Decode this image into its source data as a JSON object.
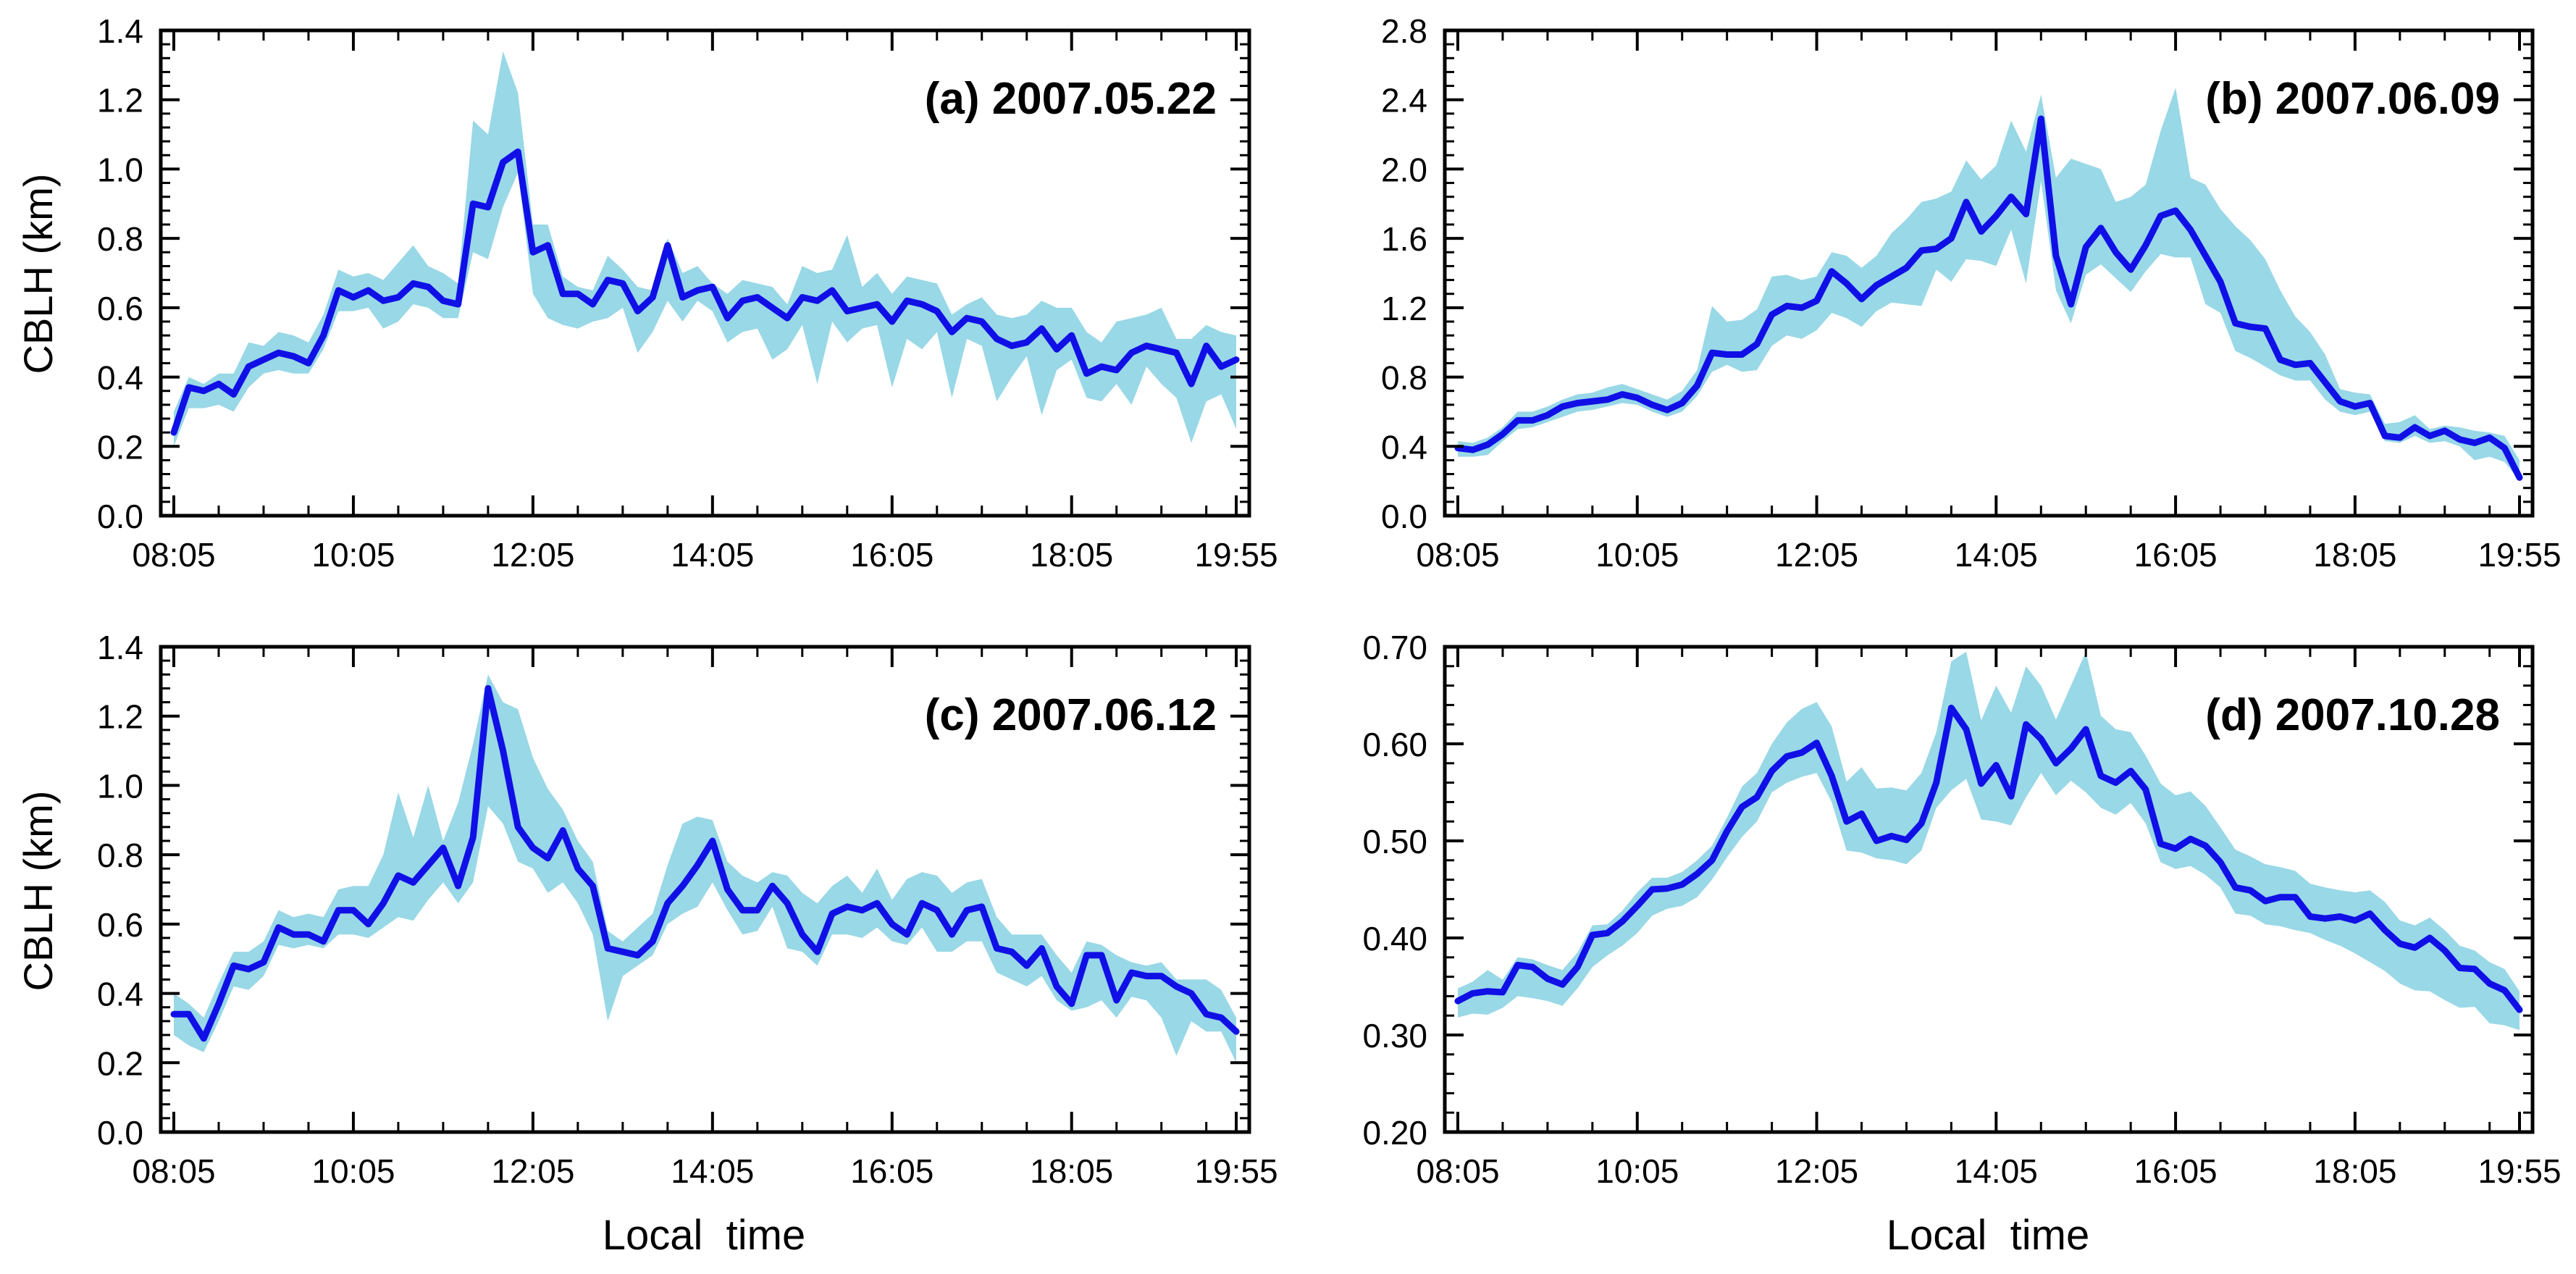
{
  "colors": {
    "line": "#1010e6",
    "band": "#99d8e6",
    "axis": "#000000"
  },
  "shared": {
    "ylabel": "CBLH   (km)",
    "xlabel": "Local  time",
    "xticks": [
      "08:05",
      "10:05",
      "12:05",
      "14:05",
      "16:05",
      "18:05",
      "19:55"
    ]
  },
  "chart_data": [
    {
      "type": "line",
      "title": "(a) 2007.05.22",
      "xlabel": "",
      "ylabel": "CBLH   (km)",
      "x_start": "08:05",
      "x_end": "19:55",
      "interval_minutes": 10,
      "ylim": [
        0,
        1.4
      ],
      "yticks": [
        "0.0",
        "0.2",
        "0.4",
        "0.6",
        "0.8",
        "1.0",
        "1.2",
        "1.4"
      ],
      "xticks": [
        "08:05",
        "10:05",
        "12:05",
        "14:05",
        "16:05",
        "18:05",
        "19:55"
      ],
      "grid": false,
      "series": [
        {
          "kind": "mean",
          "values": [
            0.24,
            0.37,
            0.36,
            0.38,
            0.35,
            0.43,
            0.45,
            0.47,
            0.46,
            0.44,
            0.52,
            0.65,
            0.63,
            0.65,
            0.62,
            0.63,
            0.67,
            0.66,
            0.62,
            0.61,
            0.9,
            0.89,
            1.02,
            1.05,
            0.76,
            0.78,
            0.64,
            0.64,
            0.61,
            0.68,
            0.67,
            0.59,
            0.63,
            0.78,
            0.63,
            0.65,
            0.66,
            0.57,
            0.62,
            0.63,
            0.6,
            0.57,
            0.63,
            0.62,
            0.65,
            0.59,
            0.6,
            0.61,
            0.56,
            0.62,
            0.61,
            0.59,
            0.53,
            0.57,
            0.56,
            0.51,
            0.49,
            0.5,
            0.54,
            0.48,
            0.52,
            0.41,
            0.43,
            0.42,
            0.47,
            0.49,
            0.48,
            0.47,
            0.38,
            0.49,
            0.43,
            0.45
          ]
        },
        {
          "kind": "upper",
          "values": [
            0.3,
            0.4,
            0.38,
            0.41,
            0.41,
            0.5,
            0.49,
            0.53,
            0.52,
            0.5,
            0.58,
            0.71,
            0.69,
            0.7,
            0.68,
            0.73,
            0.78,
            0.72,
            0.7,
            0.67,
            1.14,
            1.1,
            1.34,
            1.22,
            0.84,
            0.84,
            0.69,
            0.66,
            0.65,
            0.75,
            0.71,
            0.66,
            0.65,
            0.8,
            0.7,
            0.72,
            0.67,
            0.64,
            0.68,
            0.67,
            0.66,
            0.61,
            0.72,
            0.7,
            0.71,
            0.81,
            0.66,
            0.7,
            0.64,
            0.69,
            0.68,
            0.67,
            0.58,
            0.61,
            0.63,
            0.58,
            0.57,
            0.58,
            0.62,
            0.6,
            0.6,
            0.53,
            0.5,
            0.56,
            0.57,
            0.58,
            0.6,
            0.51,
            0.51,
            0.55,
            0.53,
            0.52
          ]
        },
        {
          "kind": "lower",
          "values": [
            0.2,
            0.31,
            0.31,
            0.32,
            0.3,
            0.37,
            0.41,
            0.42,
            0.41,
            0.41,
            0.48,
            0.59,
            0.59,
            0.6,
            0.54,
            0.56,
            0.61,
            0.6,
            0.57,
            0.57,
            0.76,
            0.74,
            0.89,
            0.99,
            0.64,
            0.57,
            0.55,
            0.54,
            0.56,
            0.57,
            0.6,
            0.47,
            0.53,
            0.62,
            0.56,
            0.62,
            0.59,
            0.5,
            0.53,
            0.54,
            0.45,
            0.48,
            0.55,
            0.38,
            0.56,
            0.5,
            0.54,
            0.55,
            0.37,
            0.51,
            0.48,
            0.53,
            0.34,
            0.51,
            0.49,
            0.33,
            0.4,
            0.46,
            0.29,
            0.42,
            0.45,
            0.34,
            0.33,
            0.38,
            0.32,
            0.43,
            0.38,
            0.34,
            0.21,
            0.33,
            0.35,
            0.25
          ]
        }
      ]
    },
    {
      "type": "line",
      "title": "(b) 2007.06.09",
      "xlabel": "",
      "ylabel": "",
      "x_start": "08:05",
      "x_end": "19:55",
      "interval_minutes": 10,
      "ylim": [
        0,
        2.8
      ],
      "yticks": [
        "0.0",
        "0.4",
        "0.8",
        "1.2",
        "1.6",
        "2.0",
        "2.4",
        "2.8"
      ],
      "xticks": [
        "08:05",
        "10:05",
        "12:05",
        "14:05",
        "16:05",
        "18:05",
        "19:55"
      ],
      "grid": false,
      "series": [
        {
          "kind": "mean",
          "values": [
            0.39,
            0.38,
            0.41,
            0.47,
            0.55,
            0.55,
            0.58,
            0.63,
            0.65,
            0.66,
            0.67,
            0.7,
            0.68,
            0.64,
            0.61,
            0.65,
            0.75,
            0.94,
            0.93,
            0.93,
            0.99,
            1.16,
            1.21,
            1.2,
            1.24,
            1.41,
            1.34,
            1.25,
            1.33,
            1.38,
            1.43,
            1.53,
            1.54,
            1.6,
            1.81,
            1.64,
            1.73,
            1.84,
            1.74,
            2.29,
            1.5,
            1.22,
            1.55,
            1.66,
            1.52,
            1.42,
            1.56,
            1.73,
            1.76,
            1.65,
            1.5,
            1.35,
            1.11,
            1.09,
            1.08,
            0.9,
            0.87,
            0.88,
            0.77,
            0.66,
            0.63,
            0.65,
            0.46,
            0.45,
            0.51,
            0.46,
            0.49,
            0.44,
            0.42,
            0.45,
            0.39,
            0.22
          ]
        },
        {
          "kind": "upper",
          "values": [
            0.43,
            0.42,
            0.45,
            0.51,
            0.6,
            0.6,
            0.63,
            0.67,
            0.7,
            0.71,
            0.74,
            0.76,
            0.73,
            0.7,
            0.67,
            0.72,
            0.84,
            1.21,
            1.12,
            1.13,
            1.19,
            1.38,
            1.39,
            1.36,
            1.38,
            1.52,
            1.5,
            1.43,
            1.5,
            1.63,
            1.71,
            1.81,
            1.83,
            1.87,
            2.05,
            1.94,
            2.02,
            2.28,
            2.1,
            2.43,
            1.95,
            2.06,
            2.03,
            2.0,
            1.81,
            1.84,
            1.91,
            2.22,
            2.47,
            1.95,
            1.91,
            1.77,
            1.67,
            1.59,
            1.48,
            1.3,
            1.15,
            1.06,
            0.93,
            0.73,
            0.71,
            0.7,
            0.53,
            0.54,
            0.58,
            0.5,
            0.52,
            0.51,
            0.49,
            0.48,
            0.46,
            0.32
          ]
        },
        {
          "kind": "lower",
          "values": [
            0.34,
            0.34,
            0.35,
            0.43,
            0.5,
            0.51,
            0.54,
            0.57,
            0.6,
            0.61,
            0.63,
            0.65,
            0.64,
            0.6,
            0.57,
            0.6,
            0.69,
            0.83,
            0.87,
            0.83,
            0.84,
            0.98,
            1.04,
            1.02,
            1.07,
            1.17,
            1.14,
            1.09,
            1.18,
            1.23,
            1.22,
            1.21,
            1.42,
            1.35,
            1.48,
            1.47,
            1.44,
            1.65,
            1.34,
            1.93,
            1.3,
            1.11,
            1.39,
            1.45,
            1.37,
            1.29,
            1.41,
            1.51,
            1.49,
            1.49,
            1.22,
            1.17,
            0.95,
            0.91,
            0.86,
            0.81,
            0.78,
            0.78,
            0.67,
            0.6,
            0.58,
            0.6,
            0.43,
            0.42,
            0.46,
            0.42,
            0.43,
            0.4,
            0.32,
            0.34,
            0.31,
            0.2
          ]
        }
      ]
    },
    {
      "type": "line",
      "title": "(c) 2007.06.12",
      "xlabel": "Local  time",
      "ylabel": "CBLH   (km)",
      "x_start": "08:05",
      "x_end": "19:55",
      "interval_minutes": 10,
      "ylim": [
        0,
        1.4
      ],
      "yticks": [
        "0.0",
        "0.2",
        "0.4",
        "0.6",
        "0.8",
        "1.0",
        "1.2",
        "1.4"
      ],
      "xticks": [
        "08:05",
        "10:05",
        "12:05",
        "14:05",
        "16:05",
        "18:05",
        "19:55"
      ],
      "grid": false,
      "series": [
        {
          "kind": "mean",
          "values": [
            0.34,
            0.34,
            0.27,
            0.37,
            0.48,
            0.47,
            0.49,
            0.59,
            0.57,
            0.57,
            0.55,
            0.64,
            0.64,
            0.6,
            0.66,
            0.74,
            0.72,
            0.77,
            0.82,
            0.71,
            0.85,
            1.28,
            1.1,
            0.88,
            0.82,
            0.79,
            0.87,
            0.76,
            0.71,
            0.53,
            0.52,
            0.51,
            0.55,
            0.66,
            0.71,
            0.77,
            0.84,
            0.7,
            0.64,
            0.64,
            0.71,
            0.66,
            0.57,
            0.52,
            0.63,
            0.65,
            0.64,
            0.66,
            0.6,
            0.57,
            0.66,
            0.64,
            0.57,
            0.64,
            0.65,
            0.53,
            0.52,
            0.48,
            0.53,
            0.42,
            0.37,
            0.51,
            0.51,
            0.38,
            0.46,
            0.45,
            0.45,
            0.42,
            0.4,
            0.34,
            0.33,
            0.29
          ]
        },
        {
          "kind": "upper",
          "values": [
            0.4,
            0.37,
            0.33,
            0.43,
            0.52,
            0.52,
            0.55,
            0.64,
            0.62,
            0.63,
            0.62,
            0.7,
            0.71,
            0.71,
            0.8,
            0.98,
            0.85,
            1.0,
            0.84,
            0.95,
            1.12,
            1.32,
            1.24,
            1.22,
            1.08,
            0.99,
            0.93,
            0.84,
            0.78,
            0.58,
            0.55,
            0.59,
            0.63,
            0.77,
            0.89,
            0.91,
            0.9,
            0.78,
            0.74,
            0.72,
            0.75,
            0.74,
            0.69,
            0.66,
            0.71,
            0.74,
            0.69,
            0.76,
            0.67,
            0.73,
            0.75,
            0.74,
            0.69,
            0.72,
            0.73,
            0.62,
            0.57,
            0.57,
            0.57,
            0.51,
            0.46,
            0.55,
            0.54,
            0.51,
            0.49,
            0.48,
            0.49,
            0.44,
            0.44,
            0.44,
            0.41,
            0.33
          ]
        },
        {
          "kind": "lower",
          "values": [
            0.28,
            0.25,
            0.23,
            0.32,
            0.42,
            0.41,
            0.45,
            0.54,
            0.53,
            0.54,
            0.53,
            0.57,
            0.57,
            0.56,
            0.59,
            0.62,
            0.61,
            0.67,
            0.72,
            0.66,
            0.72,
            0.94,
            0.89,
            0.78,
            0.76,
            0.69,
            0.72,
            0.66,
            0.57,
            0.32,
            0.45,
            0.48,
            0.51,
            0.6,
            0.63,
            0.65,
            0.72,
            0.64,
            0.57,
            0.58,
            0.65,
            0.53,
            0.52,
            0.48,
            0.57,
            0.57,
            0.56,
            0.59,
            0.55,
            0.54,
            0.59,
            0.52,
            0.52,
            0.55,
            0.55,
            0.46,
            0.44,
            0.42,
            0.45,
            0.38,
            0.35,
            0.36,
            0.38,
            0.33,
            0.39,
            0.38,
            0.33,
            0.22,
            0.32,
            0.29,
            0.29,
            0.2
          ]
        }
      ]
    },
    {
      "type": "line",
      "title": "(d) 2007.10.28",
      "xlabel": "Local  time",
      "ylabel": "",
      "x_start": "08:05",
      "x_end": "19:55",
      "interval_minutes": 10,
      "ylim": [
        0.2,
        0.7
      ],
      "yticks": [
        "0.20",
        "0.30",
        "0.40",
        "0.50",
        "0.60",
        "0.70"
      ],
      "xticks": [
        "08:05",
        "10:05",
        "12:05",
        "14:05",
        "16:05",
        "18:05",
        "19:55"
      ],
      "grid": false,
      "series": [
        {
          "kind": "mean",
          "values": [
            0.335,
            0.343,
            0.345,
            0.344,
            0.372,
            0.37,
            0.358,
            0.352,
            0.37,
            0.403,
            0.405,
            0.417,
            0.433,
            0.45,
            0.451,
            0.455,
            0.466,
            0.48,
            0.51,
            0.535,
            0.545,
            0.572,
            0.587,
            0.591,
            0.601,
            0.567,
            0.52,
            0.528,
            0.5,
            0.505,
            0.501,
            0.518,
            0.56,
            0.637,
            0.615,
            0.559,
            0.578,
            0.546,
            0.62,
            0.605,
            0.58,
            0.595,
            0.615,
            0.567,
            0.56,
            0.572,
            0.553,
            0.497,
            0.492,
            0.502,
            0.495,
            0.478,
            0.452,
            0.449,
            0.438,
            0.442,
            0.442,
            0.422,
            0.42,
            0.422,
            0.418,
            0.425,
            0.408,
            0.394,
            0.39,
            0.4,
            0.387,
            0.369,
            0.368,
            0.353,
            0.346,
            0.326
          ]
        },
        {
          "kind": "upper",
          "values": [
            0.348,
            0.355,
            0.367,
            0.357,
            0.38,
            0.378,
            0.372,
            0.367,
            0.385,
            0.413,
            0.414,
            0.428,
            0.447,
            0.462,
            0.462,
            0.468,
            0.48,
            0.495,
            0.524,
            0.556,
            0.57,
            0.6,
            0.622,
            0.636,
            0.643,
            0.618,
            0.561,
            0.576,
            0.554,
            0.555,
            0.552,
            0.57,
            0.612,
            0.685,
            0.695,
            0.624,
            0.66,
            0.632,
            0.68,
            0.66,
            0.625,
            0.66,
            0.695,
            0.629,
            0.615,
            0.612,
            0.588,
            0.559,
            0.547,
            0.551,
            0.536,
            0.514,
            0.491,
            0.484,
            0.476,
            0.473,
            0.469,
            0.456,
            0.452,
            0.449,
            0.447,
            0.449,
            0.437,
            0.418,
            0.413,
            0.421,
            0.408,
            0.392,
            0.387,
            0.375,
            0.368,
            0.345
          ]
        },
        {
          "kind": "lower",
          "values": [
            0.318,
            0.322,
            0.321,
            0.328,
            0.34,
            0.338,
            0.335,
            0.33,
            0.348,
            0.37,
            0.382,
            0.392,
            0.405,
            0.423,
            0.43,
            0.433,
            0.442,
            0.46,
            0.483,
            0.504,
            0.52,
            0.55,
            0.56,
            0.566,
            0.57,
            0.54,
            0.49,
            0.488,
            0.482,
            0.48,
            0.476,
            0.49,
            0.534,
            0.552,
            0.564,
            0.522,
            0.52,
            0.516,
            0.545,
            0.57,
            0.547,
            0.562,
            0.55,
            0.534,
            0.527,
            0.539,
            0.518,
            0.478,
            0.471,
            0.474,
            0.465,
            0.452,
            0.425,
            0.423,
            0.414,
            0.412,
            0.408,
            0.405,
            0.398,
            0.392,
            0.384,
            0.375,
            0.366,
            0.353,
            0.346,
            0.345,
            0.336,
            0.328,
            0.329,
            0.312,
            0.31,
            0.305
          ]
        }
      ]
    }
  ]
}
